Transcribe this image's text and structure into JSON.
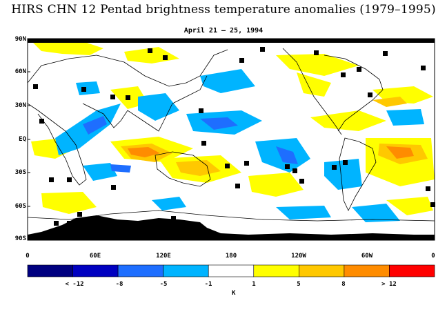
{
  "title": "HIRS CHN 12 Pentad brightness temperature anomalies (1979–1995)",
  "subtitle": "April 21 – 25, 1994",
  "map": {
    "lat_labels": [
      "90N",
      "60N",
      "30N",
      "EQ",
      "30S",
      "60S",
      "90S"
    ],
    "lon_labels": [
      "0",
      "60E",
      "120E",
      "180",
      "120W",
      "60W",
      "0"
    ],
    "missing_color": "#000000",
    "coast_color": "#000000"
  },
  "colorbar": {
    "colors": [
      "#000080",
      "#0000c0",
      "#1e6eff",
      "#00b4ff",
      "#ffffff",
      "#ffff00",
      "#ffc800",
      "#ff8c00",
      "#ff0000"
    ],
    "labels": [
      "< -12",
      "-8",
      "-5",
      "-1",
      "1",
      "5",
      "8",
      "> 12"
    ],
    "unit": "K"
  }
}
